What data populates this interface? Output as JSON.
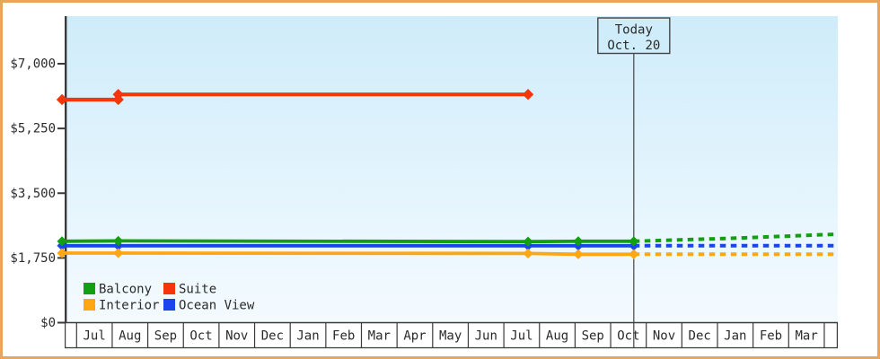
{
  "frame": {
    "background": "#ffffff",
    "border_color": "#e9a55e"
  },
  "chart_data": {
    "type": "line",
    "description": "price history with forecast",
    "plot_background": {
      "top_color": "#cfecfa",
      "bottom_color": "#f4fbff"
    },
    "axis_color": "#3a3a3a",
    "text_color": "#2b2b2b",
    "y_axis": {
      "range": [
        0,
        7000
      ],
      "ticks": [
        {
          "value": 0,
          "label": "$0"
        },
        {
          "value": 1750,
          "label": "$1,750"
        },
        {
          "value": 3500,
          "label": "$3,500"
        },
        {
          "value": 5250,
          "label": "$5,250"
        },
        {
          "value": 7000,
          "label": "$7,000"
        }
      ]
    },
    "x_axis": {
      "unit": "months since first July",
      "labels": [
        "Jul",
        "Aug",
        "Sep",
        "Oct",
        "Nov",
        "Dec",
        "Jan",
        "Feb",
        "Mar",
        "Apr",
        "May",
        "Jun",
        "Jul",
        "Aug",
        "Sep",
        "Oct",
        "Nov",
        "Dec",
        "Jan",
        "Feb",
        "Mar"
      ]
    },
    "today_marker": {
      "line1": "Today",
      "line2": "Oct. 20",
      "t": 15.65
    },
    "series": [
      {
        "name": "Ocean View",
        "color": "#1a44ee",
        "history": [
          {
            "t": -0.41,
            "v": 2080
          },
          {
            "t": 1.17,
            "v": 2080
          },
          {
            "t": 12.68,
            "v": 2080
          },
          {
            "t": 14.09,
            "v": 2080
          },
          {
            "t": 15.65,
            "v": 2080
          }
        ],
        "forecast": [
          {
            "t": 15.65,
            "v": 2080
          },
          {
            "t": 21.3,
            "v": 2080
          }
        ]
      },
      {
        "name": "Interior",
        "color": "#ffa713",
        "history": [
          {
            "t": -0.41,
            "v": 1880
          },
          {
            "t": 1.17,
            "v": 1880
          },
          {
            "t": 12.68,
            "v": 1870
          },
          {
            "t": 14.09,
            "v": 1850
          },
          {
            "t": 15.65,
            "v": 1850
          }
        ],
        "forecast": [
          {
            "t": 15.65,
            "v": 1850
          },
          {
            "t": 21.3,
            "v": 1850
          }
        ]
      },
      {
        "name": "Balcony",
        "color": "#12a012",
        "history": [
          {
            "t": -0.41,
            "v": 2200
          },
          {
            "t": 1.17,
            "v": 2210
          },
          {
            "t": 12.68,
            "v": 2190
          },
          {
            "t": 14.09,
            "v": 2200
          },
          {
            "t": 15.65,
            "v": 2200
          }
        ],
        "forecast": [
          {
            "t": 15.65,
            "v": 2200
          },
          {
            "t": 18.4,
            "v": 2280
          },
          {
            "t": 21.3,
            "v": 2390
          }
        ]
      },
      {
        "name": "Suite",
        "color": "#f5350b",
        "history": [
          {
            "t": -0.41,
            "v": 6030
          },
          {
            "t": 1.17,
            "v": 6030
          },
          {
            "t": 1.17,
            "v": 6170
          },
          {
            "t": 12.68,
            "v": 6170
          }
        ],
        "forecast": []
      }
    ],
    "legend": {
      "rows": [
        [
          "Balcony",
          "Suite"
        ],
        [
          "Interior",
          "Ocean View"
        ]
      ]
    }
  }
}
